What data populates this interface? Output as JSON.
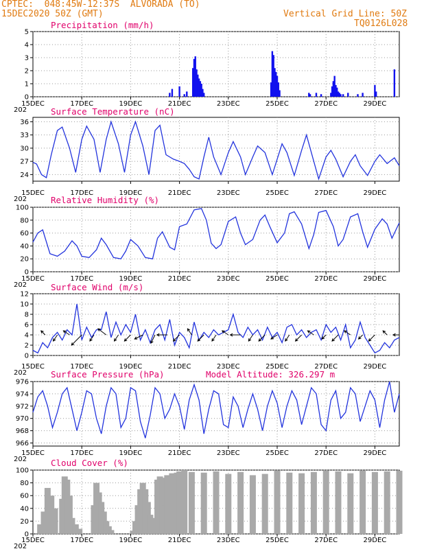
{
  "header": {
    "line1": "CPTEC:  048:45W-12:37S  ALVORADA (TO)",
    "line2": "15DEC2020 50Z (GMT)",
    "grid_note": "Vertical Grid Line: 50Z",
    "code": "TQ0126L028"
  },
  "x_axis": {
    "labels": [
      "15DEC",
      "17DEC",
      "19DEC",
      "21DEC",
      "23DEC",
      "25DEC",
      "27DEC",
      "29DEC"
    ],
    "year_stub": "202"
  },
  "colors": {
    "line": "#2233dd",
    "bar": "#1111ee",
    "cloud": "#a9a9a9",
    "title": "#e0006a",
    "header": "#e07a10"
  },
  "chart_data": [
    {
      "id": "precip",
      "type": "bar",
      "title": "Precipitation (mm/h)",
      "ylim": [
        0,
        5
      ],
      "yticks": [
        0,
        1,
        2,
        3,
        4,
        5
      ],
      "x_unit": "days since 15DEC",
      "x_range": [
        0,
        15
      ],
      "x": [
        5.6,
        5.7,
        6.0,
        6.2,
        6.3,
        6.55,
        6.6,
        6.65,
        6.7,
        6.75,
        6.8,
        6.85,
        6.9,
        6.95,
        7.0,
        9.75,
        9.8,
        9.85,
        9.9,
        9.95,
        10.0,
        10.05,
        10.1,
        11.3,
        11.35,
        11.6,
        11.8,
        12.2,
        12.25,
        12.3,
        12.35,
        12.4,
        12.45,
        12.5,
        12.55,
        12.6,
        12.7,
        12.9,
        13.3,
        13.5,
        14.0,
        14.05,
        14.8
      ],
      "values": [
        0.3,
        0.6,
        0.8,
        0.2,
        0.4,
        2.2,
        2.9,
        3.1,
        2.1,
        1.7,
        1.4,
        1.2,
        1.0,
        0.6,
        0.3,
        1.1,
        3.5,
        3.2,
        2.2,
        1.9,
        1.6,
        1.1,
        0.5,
        0.3,
        0.2,
        0.3,
        0.2,
        0.3,
        0.8,
        1.2,
        1.6,
        0.9,
        0.7,
        0.4,
        0.3,
        0.2,
        0.2,
        0.3,
        0.2,
        0.3,
        0.9,
        0.4,
        2.1
      ]
    },
    {
      "id": "temp",
      "type": "line",
      "title": "Surface Temperature (nC)",
      "ylim": [
        22.5,
        37
      ],
      "yticks": [
        24,
        27,
        30,
        33,
        36
      ],
      "x": [
        0,
        0.15,
        0.35,
        0.55,
        0.75,
        1.0,
        1.2,
        1.5,
        1.75,
        2.0,
        2.2,
        2.5,
        2.75,
        3.0,
        3.2,
        3.5,
        3.75,
        4.0,
        4.2,
        4.5,
        4.75,
        5.0,
        5.2,
        5.45,
        5.75,
        6.0,
        6.2,
        6.4,
        6.6,
        6.8,
        7.0,
        7.2,
        7.4,
        7.7,
        8.0,
        8.2,
        8.5,
        8.7,
        9.0,
        9.2,
        9.5,
        9.8,
        10.0,
        10.2,
        10.4,
        10.7,
        11.0,
        11.2,
        11.4,
        11.7,
        12.0,
        12.2,
        12.4,
        12.7,
        13.0,
        13.2,
        13.4,
        13.7,
        14.0,
        14.2,
        14.5,
        14.8,
        15.0
      ],
      "values": [
        26.8,
        26.4,
        24.0,
        23.3,
        28.5,
        34.0,
        34.8,
        30.0,
        24.5,
        32.0,
        35.0,
        32.0,
        24.5,
        32.0,
        36.0,
        31.0,
        24.5,
        33.0,
        36.0,
        30.5,
        24.0,
        34.0,
        35.2,
        28.5,
        27.5,
        27.0,
        26.5,
        25.2,
        23.5,
        23.0,
        28.0,
        32.5,
        28.0,
        24.0,
        29.0,
        31.5,
        28.0,
        24.0,
        28.0,
        30.5,
        29.0,
        24.0,
        27.5,
        31.0,
        29.0,
        23.8,
        29.5,
        33.0,
        29.0,
        23.0,
        28.0,
        29.5,
        27.5,
        23.5,
        27.0,
        28.5,
        26.0,
        23.8,
        27.0,
        28.5,
        26.5,
        27.8,
        26.0
      ]
    },
    {
      "id": "rh",
      "type": "line",
      "title": "Relative Humidity (%)",
      "ylim": [
        0,
        100
      ],
      "yticks": [
        0,
        20,
        40,
        60,
        80,
        100
      ],
      "x": [
        0,
        0.2,
        0.4,
        0.7,
        1.0,
        1.3,
        1.6,
        1.8,
        2.0,
        2.3,
        2.6,
        2.8,
        3.0,
        3.3,
        3.6,
        3.8,
        4.0,
        4.3,
        4.6,
        4.9,
        5.1,
        5.3,
        5.6,
        5.8,
        6.0,
        6.3,
        6.6,
        6.9,
        7.1,
        7.3,
        7.5,
        7.7,
        8.0,
        8.3,
        8.5,
        8.7,
        9.0,
        9.3,
        9.5,
        9.7,
        10.0,
        10.3,
        10.5,
        10.7,
        11.0,
        11.3,
        11.5,
        11.7,
        12.0,
        12.3,
        12.5,
        12.7,
        13.0,
        13.3,
        13.5,
        13.7,
        14.0,
        14.3,
        14.5,
        14.7,
        15.0
      ],
      "values": [
        46,
        60,
        65,
        28,
        24,
        32,
        48,
        40,
        24,
        22,
        34,
        52,
        42,
        22,
        20,
        32,
        50,
        40,
        22,
        20,
        52,
        62,
        38,
        34,
        70,
        74,
        96,
        98,
        80,
        44,
        36,
        42,
        78,
        85,
        60,
        42,
        50,
        80,
        88,
        70,
        45,
        60,
        90,
        93,
        74,
        36,
        58,
        92,
        95,
        70,
        40,
        50,
        85,
        90,
        62,
        38,
        66,
        82,
        74,
        52,
        76
      ]
    },
    {
      "id": "wind",
      "type": "line",
      "title": "Surface Wind (m/s)",
      "ylim": [
        0,
        12
      ],
      "yticks": [
        0,
        2,
        4,
        6,
        8,
        10,
        12
      ],
      "x": [
        0,
        0.2,
        0.4,
        0.6,
        0.8,
        1.0,
        1.2,
        1.4,
        1.6,
        1.8,
        2.0,
        2.2,
        2.4,
        2.6,
        2.8,
        3.0,
        3.2,
        3.4,
        3.6,
        3.8,
        4.0,
        4.2,
        4.4,
        4.6,
        4.8,
        5.0,
        5.2,
        5.4,
        5.6,
        5.8,
        6.0,
        6.2,
        6.4,
        6.6,
        6.8,
        7.0,
        7.2,
        7.4,
        7.6,
        7.8,
        8.0,
        8.2,
        8.4,
        8.6,
        8.8,
        9.0,
        9.2,
        9.4,
        9.6,
        9.8,
        10.0,
        10.2,
        10.4,
        10.6,
        10.8,
        11.0,
        11.2,
        11.4,
        11.6,
        11.8,
        12.0,
        12.2,
        12.4,
        12.6,
        12.8,
        13.0,
        13.2,
        13.4,
        13.6,
        13.8,
        14.0,
        14.2,
        14.4,
        14.6,
        14.8,
        15.0
      ],
      "values": [
        1.0,
        0.5,
        2.5,
        1.5,
        3.5,
        4.5,
        3.0,
        5.0,
        4.0,
        10.0,
        3.0,
        5.5,
        3.5,
        5.0,
        5.0,
        8.5,
        3.5,
        6.5,
        4.0,
        6.0,
        4.5,
        8.0,
        3.0,
        5.0,
        2.5,
        5.0,
        6.0,
        3.0,
        7.0,
        2.0,
        4.5,
        3.5,
        1.5,
        6.5,
        3.0,
        4.5,
        3.5,
        5.0,
        4.0,
        4.5,
        5.0,
        8.0,
        4.5,
        3.5,
        5.5,
        4.0,
        5.0,
        3.0,
        5.5,
        3.5,
        4.5,
        2.5,
        5.5,
        6.0,
        4.0,
        5.0,
        3.5,
        4.5,
        5.0,
        3.0,
        6.0,
        4.5,
        5.5,
        3.0,
        6.0,
        1.5,
        3.0,
        6.5,
        3.5,
        2.0,
        0.5,
        1.0,
        2.5,
        1.5,
        3.0,
        3.5
      ]
    },
    {
      "id": "pressure",
      "type": "line",
      "title": "Surface Pressure (hPa)",
      "ylim": [
        965.5,
        976
      ],
      "yticks": [
        966,
        968,
        970,
        972,
        974,
        976
      ],
      "annotation": "Model Altitude: 326.297 m",
      "x": [
        0,
        0.2,
        0.4,
        0.6,
        0.8,
        1.0,
        1.2,
        1.4,
        1.6,
        1.8,
        2.0,
        2.2,
        2.4,
        2.6,
        2.8,
        3.0,
        3.2,
        3.4,
        3.6,
        3.8,
        4.0,
        4.2,
        4.4,
        4.6,
        4.8,
        5.0,
        5.2,
        5.4,
        5.6,
        5.8,
        6.0,
        6.2,
        6.4,
        6.6,
        6.8,
        7.0,
        7.2,
        7.4,
        7.6,
        7.8,
        8.0,
        8.2,
        8.4,
        8.6,
        8.8,
        9.0,
        9.2,
        9.4,
        9.6,
        9.8,
        10.0,
        10.2,
        10.4,
        10.6,
        10.8,
        11.0,
        11.2,
        11.4,
        11.6,
        11.8,
        12.0,
        12.2,
        12.4,
        12.6,
        12.8,
        13.0,
        13.2,
        13.4,
        13.6,
        13.8,
        14.0,
        14.2,
        14.4,
        14.6,
        14.8,
        15.0
      ],
      "values": [
        971,
        973.5,
        974.5,
        972,
        968.5,
        971,
        974,
        975,
        971.5,
        968,
        971,
        974.5,
        974,
        970,
        967.5,
        972,
        975,
        974,
        968.5,
        970,
        975,
        974.5,
        969.5,
        966.8,
        970.5,
        975,
        974,
        970,
        971.5,
        974,
        972,
        968.2,
        973,
        975.5,
        973,
        967.5,
        971.5,
        974.5,
        974,
        969,
        968.5,
        973.5,
        972,
        968.5,
        971.5,
        974,
        971.5,
        968,
        972,
        974.5,
        972.5,
        968.5,
        972,
        974.5,
        973,
        969,
        972,
        975,
        974,
        969,
        968,
        973,
        974.5,
        970,
        971,
        975,
        974,
        969.5,
        972,
        974.5,
        973,
        968.5,
        973,
        976,
        971,
        974
      ]
    },
    {
      "id": "cloud",
      "type": "bar",
      "title": "Cloud Cover (%)",
      "ylim": [
        0,
        100
      ],
      "yticks": [
        0,
        20,
        40,
        60,
        80,
        100
      ],
      "x": [
        0.3,
        0.45,
        0.6,
        0.75,
        0.9,
        1.2,
        1.3,
        1.4,
        1.5,
        1.6,
        1.75,
        1.9,
        2.5,
        2.6,
        2.7,
        2.8,
        2.9,
        3.0,
        3.1,
        3.2,
        4.1,
        4.2,
        4.3,
        4.4,
        4.5,
        4.6,
        4.7,
        4.8,
        4.9,
        5.0,
        5.1,
        5.2,
        5.3,
        5.4,
        5.5,
        5.6,
        5.7,
        5.8,
        5.9,
        6.0,
        6.2,
        6.5,
        7.0,
        7.5,
        8.0,
        8.5,
        9.0,
        9.5,
        10.0,
        10.5,
        11.0,
        11.5,
        12.0,
        12.5,
        13.0,
        13.5,
        14.0,
        14.5,
        15.0
      ],
      "values": [
        15,
        35,
        72,
        60,
        40,
        55,
        90,
        85,
        60,
        25,
        15,
        8,
        45,
        80,
        65,
        50,
        35,
        20,
        12,
        6,
        5,
        20,
        45,
        70,
        80,
        70,
        50,
        30,
        25,
        15,
        85,
        90,
        88,
        45,
        92,
        90,
        95,
        65,
        96,
        98,
        100,
        97,
        96,
        98,
        94,
        97,
        92,
        94,
        99,
        96,
        95,
        97,
        99,
        98,
        95,
        99,
        97,
        98,
        99
      ]
    }
  ],
  "wind_arrows": {
    "x": [
      0.5,
      1.0,
      1.5,
      2.0,
      2.5,
      3.0,
      3.5,
      4.0,
      4.5,
      5.0,
      5.5,
      6.0,
      6.5,
      7.0,
      7.5,
      8.0,
      8.5,
      9.0,
      9.5,
      10.0,
      10.5,
      11.0,
      11.5,
      12.0,
      12.5,
      13.0,
      13.5,
      14.0,
      14.5,
      15.0
    ],
    "u": [
      -2,
      -2,
      -3,
      -5,
      -2,
      -4,
      -2,
      -3,
      -4,
      -2,
      -5,
      -3,
      -2,
      -3,
      -2,
      -3,
      -5,
      -2,
      -3,
      -3,
      -2,
      -3,
      -3,
      -2,
      -3,
      -3,
      -2,
      -3,
      -2,
      -3
    ],
    "v": [
      2,
      -3,
      2,
      -5,
      -3,
      3,
      -3,
      -3,
      -2,
      -4,
      0,
      -3,
      3,
      -3,
      -3,
      2,
      0,
      -3,
      -3,
      -2,
      -3,
      -3,
      2,
      -2,
      -3,
      2,
      -2,
      -3,
      2,
      0
    ]
  }
}
